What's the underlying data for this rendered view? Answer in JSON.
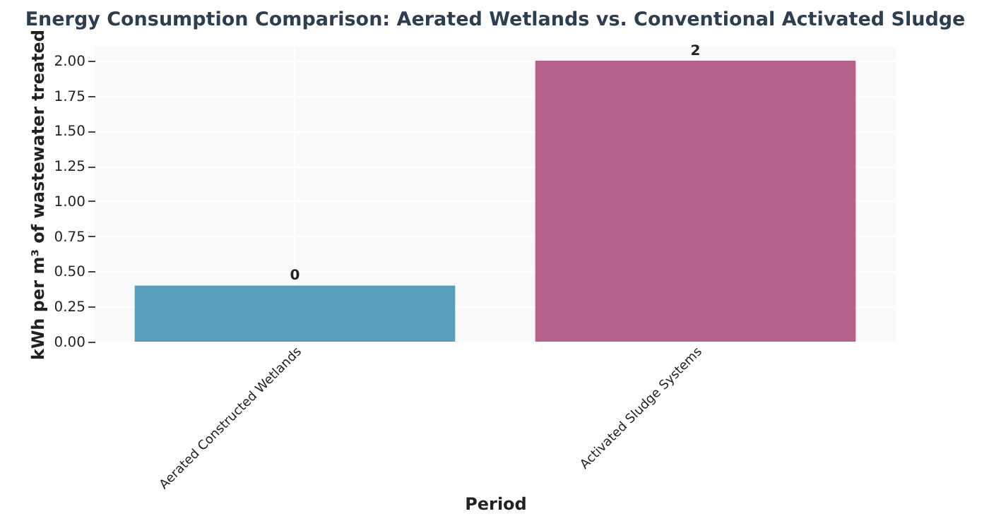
{
  "chart_data": {
    "type": "bar",
    "title": "Energy Consumption Comparison: Aerated Wetlands vs. Conventional Activated Sludge",
    "xlabel": "Period",
    "ylabel": "kWh per m³ of wastewater treated",
    "categories": [
      "Aerated Constructed Wetlands",
      "Activated Sludge Systems"
    ],
    "values": [
      0.4,
      2.0
    ],
    "colors": [
      "#569fba",
      "#b5618a"
    ],
    "value_labels": [
      "0",
      "2"
    ],
    "ylim": [
      0,
      2.1
    ],
    "yticks": [
      {
        "value": 0,
        "label": "0.00"
      },
      {
        "value": 0.25,
        "label": "0.25"
      },
      {
        "value": 0.5,
        "label": "0.50"
      },
      {
        "value": 0.75,
        "label": "0.75"
      },
      {
        "value": 1,
        "label": "1.00"
      },
      {
        "value": 1.25,
        "label": "1.25"
      },
      {
        "value": 1.5,
        "label": "1.50"
      },
      {
        "value": 1.75,
        "label": "1.75"
      },
      {
        "value": 2,
        "label": "2.00"
      }
    ],
    "grid": true
  }
}
